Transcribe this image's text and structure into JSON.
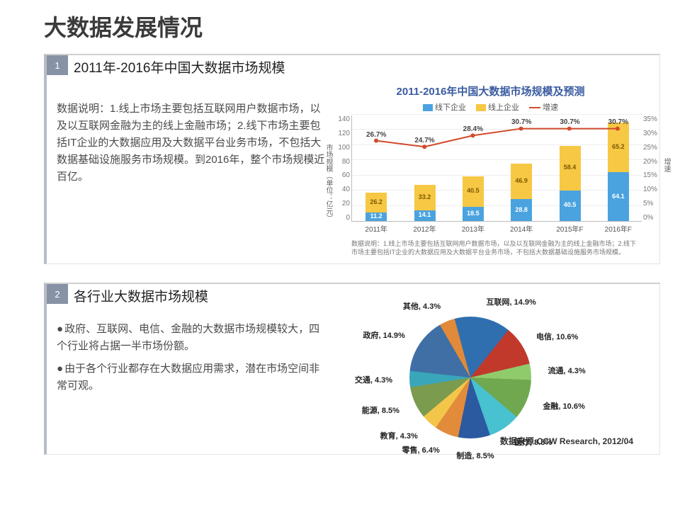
{
  "title": "大数据发展情况",
  "panel1": {
    "num": "1",
    "heading": "2011年-2016年中国大数据市场规模",
    "text": "数据说明：1.线上市场主要包括互联网用户数据市场，以及以互联网金融为主的线上金融市场；2.线下市场主要包括IT企业的大数据应用及大数据平台业务市场，不包括大数据基础设施服务市场规模。到2016年，整个市场规模近百亿。",
    "chart": {
      "type": "stacked_bar_with_line",
      "title": "2011-2016年中国大数据市场规模及预测",
      "legend": [
        {
          "label": "线下企业",
          "color": "#4aa3df"
        },
        {
          "label": "线上企业",
          "color": "#f7c843"
        },
        {
          "label": "增速",
          "color": "#d24a2b"
        }
      ],
      "y_left": {
        "label": "市场规模（单位：亿元）",
        "min": 0,
        "max": 140,
        "step": 20
      },
      "y_right": {
        "label": "增速",
        "min": 0,
        "max": 35,
        "step": 5,
        "suffix": "%"
      },
      "categories": [
        "2011年",
        "2012年",
        "2013年",
        "2014年",
        "2015年F",
        "2016年F"
      ],
      "offline": [
        11.2,
        14.1,
        18.5,
        28.8,
        40.5,
        64.1
      ],
      "online": [
        26.2,
        33.2,
        40.5,
        46.9,
        58.4,
        65.2
      ],
      "growth": [
        26.7,
        24.7,
        28.4,
        30.7,
        30.7,
        30.7
      ],
      "offline_color": "#4aa3df",
      "online_color": "#f7c843",
      "line_color": "#d24a2b",
      "footnote": "数据说明：1.线上市场主要包括互联网用户数据市场，以及以互联网金融为主的线上金融市场；2.线下市场主要包括IT企业的大数据应用及大数据平台业务市场，不包括大数据基础设施服务市场规模。"
    }
  },
  "panel2": {
    "num": "2",
    "heading": "各行业大数据市场规模",
    "bullets": [
      "政府、互联网、电信、金融的大数据市场规模较大，四个行业将占据一半市场份额。",
      "由于各个行业都存在大数据应用需求，潜在市场空间非常可观。"
    ],
    "pie": {
      "type": "pie",
      "slices": [
        {
          "label": "互联网, 14.9%",
          "value": 14.9,
          "color": "#2f6fb0"
        },
        {
          "label": "电信, 10.6%",
          "value": 10.6,
          "color": "#c0392b"
        },
        {
          "label": "流通, 4.3%",
          "value": 4.3,
          "color": "#8fcb6b"
        },
        {
          "label": "金融, 10.6%",
          "value": 10.6,
          "color": "#6fa84f"
        },
        {
          "label": "医疗, 8.5%",
          "value": 8.5,
          "color": "#48c1d1"
        },
        {
          "label": "制造, 8.5%",
          "value": 8.5,
          "color": "#2c5aa0"
        },
        {
          "label": "零售, 6.4%",
          "value": 6.4,
          "color": "#e28b3b"
        },
        {
          "label": "教育, 4.3%",
          "value": 4.3,
          "color": "#f3c64a"
        },
        {
          "label": "能源, 8.5%",
          "value": 8.5,
          "color": "#7b9b4f"
        },
        {
          "label": "交通, 4.3%",
          "value": 4.3,
          "color": "#3aa6b9"
        },
        {
          "label": "政府, 14.9%",
          "value": 14.9,
          "color": "#3f6fa5"
        },
        {
          "label": "其他, 4.3%",
          "value": 4.3,
          "color": "#e08a3a"
        }
      ],
      "source": "数据来源:CCW Research, 2012/04"
    }
  }
}
